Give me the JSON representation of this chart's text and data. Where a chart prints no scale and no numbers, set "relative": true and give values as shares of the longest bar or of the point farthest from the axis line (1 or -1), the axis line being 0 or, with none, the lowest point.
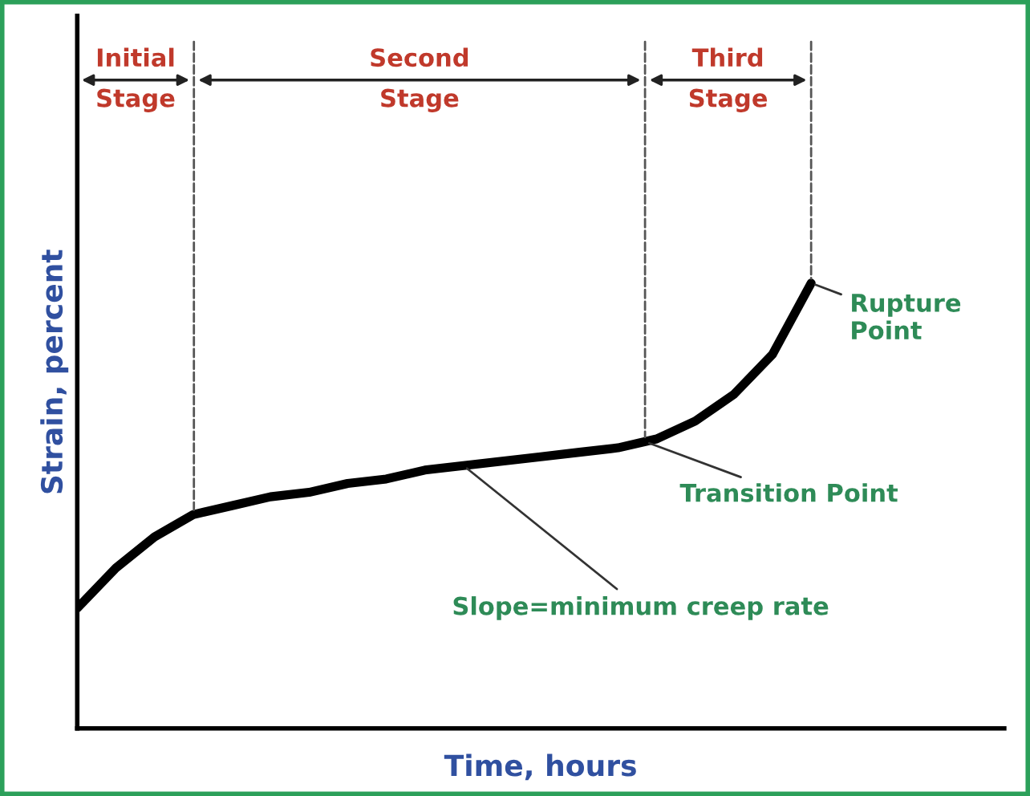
{
  "chart_data": {
    "type": "line",
    "relative": true,
    "xlabel": "Time, hours",
    "ylabel": "Strain, percent",
    "categories": [
      null,
      null,
      null,
      null,
      null,
      null,
      null,
      null,
      null,
      null,
      null,
      null,
      null,
      null,
      null,
      null,
      null,
      null,
      null,
      null,
      null,
      null,
      null,
      null,
      null
    ],
    "marker": "none",
    "line_style": "solid",
    "series": [
      {
        "color": "#000000",
        "values": [
          0.27,
          0.36,
          0.43,
          0.48,
          0.5,
          0.52,
          0.53,
          0.55,
          0.56,
          0.58,
          0.59,
          0.6,
          0.61,
          0.62,
          0.63,
          0.65,
          0.69,
          0.75,
          0.84,
          1.0,
          null,
          null,
          null,
          null,
          null
        ]
      }
    ],
    "annotations": [
      "Initial\nStage",
      "Second\nStage",
      "Third\nStage",
      "Rupture\nPoint",
      "Transition Point",
      "Slope=minimum creep rate"
    ]
  }
}
